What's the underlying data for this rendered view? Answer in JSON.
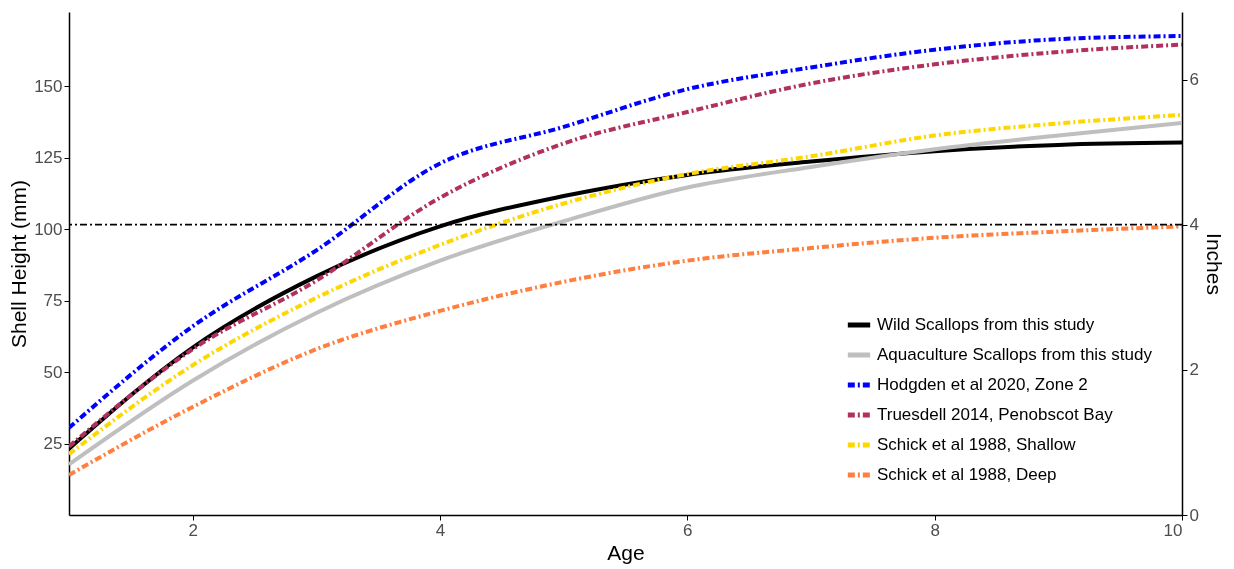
{
  "chart_data": {
    "type": "line",
    "xlabel": "Age",
    "ylabel": "Shell Height (mm)",
    "y2label": "Inches",
    "xlim": [
      1,
      10
    ],
    "xticks": [
      2,
      4,
      6,
      8,
      10
    ],
    "ylim": [
      0,
      176
    ],
    "yticks": [
      25,
      50,
      75,
      100,
      125,
      150
    ],
    "y2lim": [
      0,
      6.93
    ],
    "y2ticks": [
      0,
      2,
      4,
      6
    ],
    "grid": false,
    "legend": "bottom right",
    "x": [
      1,
      2,
      3,
      4,
      5,
      6,
      7,
      8,
      9,
      10
    ],
    "series": [
      {
        "name": "Wild Scallops from this study",
        "color": "#000000",
        "line_style": "solid",
        "values": [
          23.2,
          58.6,
          83.5,
          101,
          111.6,
          119,
          123.7,
          127.3,
          129.5,
          130.3
        ]
      },
      {
        "name": "Aquaculture Scallops from this study",
        "color": "#bfbfbf",
        "line_style": "solid",
        "values": [
          17.7,
          47,
          70.7,
          89,
          102.8,
          114.6,
          121.8,
          128,
          132.8,
          137.2
        ]
      },
      {
        "name": "Hodgden et al 2020, Zone 2",
        "color": "#0000ff",
        "line_style": "dashed",
        "values": [
          30.5,
          66,
          92.6,
          123,
          135.8,
          149,
          156.6,
          162.8,
          166.5,
          167.6
        ]
      },
      {
        "name": "Truesdell 2014, Penobscot Bay",
        "color": "#b03060",
        "line_style": "dashed",
        "values": [
          24,
          58,
          82,
          111,
          130,
          141,
          151,
          157.7,
          162,
          164.6
        ]
      },
      {
        "name": "Schick et al 1988, Shallow",
        "color": "#ffd700",
        "line_style": "dashed",
        "values": [
          21.3,
          52.4,
          76,
          94.5,
          109,
          119.3,
          125.5,
          132.8,
          137,
          140
        ]
      },
      {
        "name": "Schick et al 1988, Deep",
        "color": "#ff7f3f",
        "line_style": "dashed",
        "values": [
          14,
          37.8,
          58,
          71.4,
          81.6,
          89,
          93.4,
          97,
          99.2,
          101
        ]
      }
    ],
    "ref_lines": [
      {
        "axis": "y2",
        "value": 4,
        "line_style": "dashed",
        "color": "#000000"
      }
    ]
  }
}
